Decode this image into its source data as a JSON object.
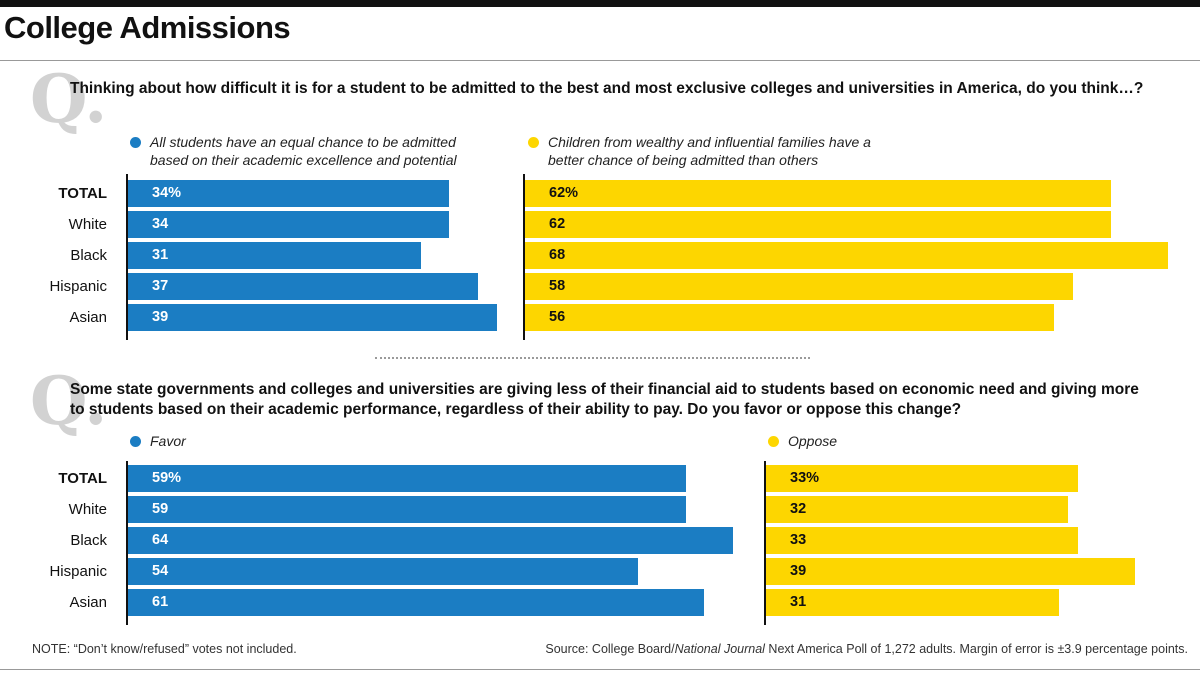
{
  "title": "College Admissions",
  "footer": {
    "note": "NOTE: “Don’t know/refused” votes not included.",
    "source_prefix": "Source: College Board/",
    "source_italic": "National Journal",
    "source_suffix": " Next America Poll of 1,272 adults. Margin of error is ±3.9 percentage points."
  },
  "chart_data": [
    {
      "type": "bar",
      "orientation": "horizontal",
      "q_mark": "Q.",
      "question": "Thinking about how difficult it is for a student to be admitted to the best and most exclusive colleges and universities in America, do you think…?",
      "categories": [
        "TOTAL",
        "White",
        "Black",
        "Hispanic",
        "Asian"
      ],
      "series": [
        {
          "name": "All students have an equal chance to be admitted based on their academic excellence and potential",
          "color": "#1b7dc3",
          "values": [
            34,
            34,
            31,
            37,
            39
          ],
          "labels": [
            "34%",
            "34",
            "31",
            "37",
            "39"
          ]
        },
        {
          "name": "Children from wealthy and influential families have a better chance of being admitted than others",
          "color": "#fdd600",
          "values": [
            62,
            62,
            68,
            58,
            56
          ],
          "labels": [
            "62%",
            "62",
            "68",
            "58",
            "56"
          ]
        }
      ],
      "xlim": [
        0,
        100
      ],
      "grid": false
    },
    {
      "type": "bar",
      "orientation": "horizontal",
      "q_mark": "Q.",
      "question": "Some state governments and colleges and universities are giving less of their financial aid to students based on economic need and giving more to students based on their academic performance, regardless of their ability to pay. Do you favor or oppose this change?",
      "categories": [
        "TOTAL",
        "White",
        "Black",
        "Hispanic",
        "Asian"
      ],
      "series": [
        {
          "name": "Favor",
          "color": "#1b7dc3",
          "values": [
            59,
            59,
            64,
            54,
            61
          ],
          "labels": [
            "59%",
            "59",
            "64",
            "54",
            "61"
          ]
        },
        {
          "name": "Oppose",
          "color": "#fdd600",
          "values": [
            33,
            32,
            33,
            39,
            31
          ],
          "labels": [
            "33%",
            "32",
            "33",
            "39",
            "31"
          ]
        }
      ],
      "xlim": [
        0,
        100
      ],
      "grid": false
    }
  ]
}
